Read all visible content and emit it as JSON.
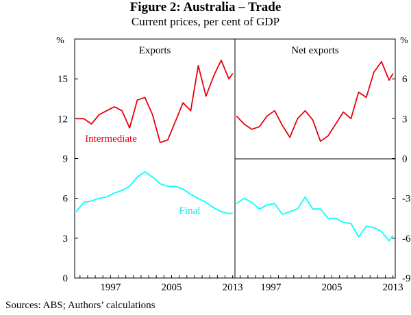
{
  "title": "Figure 2: Australia – Trade",
  "subtitle": "Current prices, per cent of GDP",
  "source": "Sources:  ABS; Authors’ calculations",
  "colors": {
    "intermediate": "#e8000b",
    "final": "#00ffff",
    "axis": "#000000"
  },
  "chart_data": [
    {
      "type": "line",
      "panel": "Exports",
      "title": "Exports",
      "ylabel": "%",
      "ylim": [
        0,
        18
      ],
      "yticks": [
        "0",
        "3",
        "6",
        "9",
        "12",
        "15"
      ],
      "xlim": [
        1992.3,
        2013.3
      ],
      "xticks": [
        "1997",
        "2005",
        "2013"
      ],
      "x": [
        1992.5,
        1993.5,
        1994.5,
        1995.5,
        1996.5,
        1997.5,
        1998.5,
        1999.5,
        2000.5,
        2001.5,
        2002.5,
        2003.5,
        2004.5,
        2005.5,
        2006.5,
        2007.5,
        2008.5,
        2009.5,
        2010.5,
        2011.5,
        2012.5,
        2013.0
      ],
      "series": [
        {
          "name": "Intermediate",
          "color_key": "intermediate",
          "values": [
            12.0,
            12.0,
            11.6,
            12.3,
            12.6,
            12.9,
            12.6,
            11.3,
            13.4,
            13.6,
            12.3,
            10.2,
            10.4,
            11.8,
            13.2,
            12.6,
            16.0,
            13.7,
            15.2,
            16.4,
            15.0,
            15.4
          ]
        },
        {
          "name": "Final",
          "color_key": "final",
          "values": [
            5.0,
            5.7,
            5.8,
            6.0,
            6.1,
            6.4,
            6.6,
            6.9,
            7.6,
            8.0,
            7.6,
            7.1,
            6.9,
            6.9,
            6.7,
            6.3,
            6.0,
            5.7,
            5.3,
            5.0,
            4.85,
            4.9
          ]
        }
      ],
      "annotations": [
        "Intermediate",
        "Final"
      ]
    },
    {
      "type": "line",
      "panel": "Net exports",
      "title": "Net exports",
      "ylabel": "%",
      "ylim": [
        -9,
        9
      ],
      "yticks": [
        "-9",
        "-6",
        "-3",
        "0",
        "3",
        "6"
      ],
      "xlim": [
        1992.3,
        2013.3
      ],
      "xticks": [
        "1997",
        "2005",
        "2013"
      ],
      "x": [
        1992.5,
        1993.5,
        1994.5,
        1995.5,
        1996.5,
        1997.5,
        1998.5,
        1999.5,
        2000.5,
        2001.5,
        2002.5,
        2003.5,
        2004.5,
        2005.5,
        2006.5,
        2007.5,
        2008.5,
        2009.5,
        2010.5,
        2011.5,
        2012.5,
        2013.0
      ],
      "series": [
        {
          "name": "Intermediate",
          "color_key": "intermediate",
          "values": [
            3.2,
            2.6,
            2.2,
            2.4,
            3.2,
            3.6,
            2.5,
            1.6,
            3.0,
            3.6,
            2.9,
            1.3,
            1.7,
            2.6,
            3.5,
            3.0,
            5.0,
            4.6,
            6.5,
            7.3,
            5.9,
            6.4
          ]
        },
        {
          "name": "Final",
          "color_key": "final",
          "values": [
            -3.4,
            -3.0,
            -3.3,
            -3.8,
            -3.5,
            -3.4,
            -4.2,
            -4.0,
            -3.8,
            -2.9,
            -3.8,
            -3.8,
            -4.5,
            -4.5,
            -4.8,
            -4.9,
            -5.9,
            -5.1,
            -5.2,
            -5.5,
            -6.2,
            -5.8
          ]
        }
      ]
    }
  ]
}
